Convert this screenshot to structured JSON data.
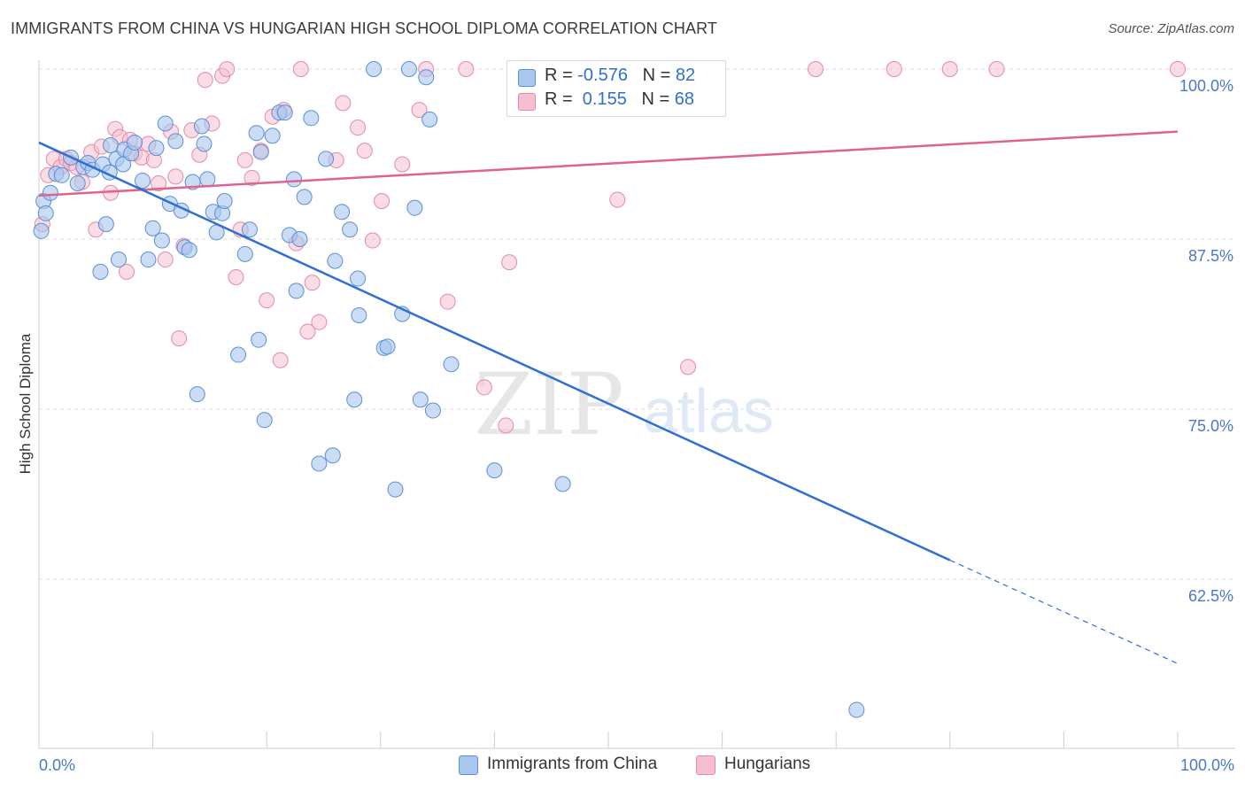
{
  "header": {
    "title": "IMMIGRANTS FROM CHINA VS HUNGARIAN HIGH SCHOOL DIPLOMA CORRELATION CHART",
    "source": "Source: ZipAtlas.com"
  },
  "legend_top": {
    "rows": [
      {
        "r_label": "R = ",
        "r_value": "-0.576",
        "n_label": "N = ",
        "n_value": "82"
      },
      {
        "r_label": "R = ",
        "r_value": " 0.155",
        "n_label": "N = ",
        "n_value": "68"
      }
    ]
  },
  "legend_bottom": {
    "china_label": "Immigrants from China",
    "hungarian_label": "Hungarians"
  },
  "watermark": {
    "zip": "ZIP",
    "atlas": "atlas"
  },
  "colors": {
    "china_fill": "#a9c6ef",
    "china_stroke": "#5b8fd6",
    "china_line": "#2f6fd3",
    "hungarian_fill": "#f6bfd0",
    "hungarian_stroke": "#e48aa8",
    "hungarian_line": "#e0638f",
    "grid": "#dddddd",
    "tick_label": "#4a78c8"
  },
  "chart_data": {
    "type": "scatter",
    "title": "IMMIGRANTS FROM CHINA VS HUNGARIAN HIGH SCHOOL DIPLOMA CORRELATION CHART",
    "xlabel": "",
    "ylabel": "High School Diploma",
    "xlim": [
      0,
      100
    ],
    "ylim": [
      52.0,
      101.2
    ],
    "x_tick_labels": [
      "0.0%",
      "100.0%"
    ],
    "y_ticks": [
      62.5,
      75.0,
      87.5,
      100.0
    ],
    "y_tick_labels": [
      "62.5%",
      "75.0%",
      "87.5%",
      "100.0%"
    ],
    "grid": true,
    "legend_position": "top-center",
    "series": [
      {
        "name": "Immigrants from China",
        "r": -0.576,
        "n": 82,
        "trend": {
          "x0": 0,
          "y0": 94.6,
          "x1": 80,
          "y1": 63.9,
          "dash_x1": 100,
          "dash_y1": 56.3
        },
        "points": [
          [
            0.2,
            88.1
          ],
          [
            0.4,
            90.3
          ],
          [
            0.6,
            89.4
          ],
          [
            1.0,
            90.9
          ],
          [
            1.5,
            92.3
          ],
          [
            2.0,
            92.2
          ],
          [
            2.8,
            93.5
          ],
          [
            3.4,
            91.6
          ],
          [
            3.9,
            92.8
          ],
          [
            4.3,
            93.1
          ],
          [
            4.7,
            92.6
          ],
          [
            5.4,
            85.1
          ],
          [
            5.6,
            93.0
          ],
          [
            5.9,
            88.6
          ],
          [
            6.2,
            92.4
          ],
          [
            6.3,
            94.4
          ],
          [
            6.8,
            93.4
          ],
          [
            7.0,
            86.0
          ],
          [
            7.4,
            93.0
          ],
          [
            7.5,
            94.1
          ],
          [
            8.1,
            93.8
          ],
          [
            8.4,
            94.6
          ],
          [
            9.1,
            91.8
          ],
          [
            9.6,
            86.0
          ],
          [
            10.0,
            88.3
          ],
          [
            10.3,
            94.2
          ],
          [
            10.8,
            87.4
          ],
          [
            11.1,
            96.0
          ],
          [
            11.5,
            90.1
          ],
          [
            12.0,
            94.7
          ],
          [
            12.5,
            89.6
          ],
          [
            12.8,
            86.9
          ],
          [
            13.2,
            86.7
          ],
          [
            13.5,
            91.7
          ],
          [
            13.9,
            76.1
          ],
          [
            14.3,
            95.8
          ],
          [
            14.5,
            94.5
          ],
          [
            14.8,
            91.9
          ],
          [
            15.3,
            89.5
          ],
          [
            15.6,
            88.0
          ],
          [
            16.1,
            89.4
          ],
          [
            16.3,
            90.3
          ],
          [
            17.5,
            79.0
          ],
          [
            18.1,
            86.4
          ],
          [
            18.5,
            88.2
          ],
          [
            19.1,
            95.3
          ],
          [
            19.3,
            80.1
          ],
          [
            19.5,
            93.9
          ],
          [
            19.8,
            74.2
          ],
          [
            20.5,
            95.1
          ],
          [
            21.1,
            96.8
          ],
          [
            21.6,
            96.8
          ],
          [
            22.0,
            87.8
          ],
          [
            22.4,
            91.9
          ],
          [
            22.6,
            83.7
          ],
          [
            22.9,
            87.5
          ],
          [
            23.3,
            90.6
          ],
          [
            23.9,
            96.4
          ],
          [
            24.6,
            71.0
          ],
          [
            25.2,
            93.4
          ],
          [
            25.8,
            71.6
          ],
          [
            26.0,
            85.9
          ],
          [
            26.6,
            89.5
          ],
          [
            27.3,
            88.2
          ],
          [
            27.7,
            75.7
          ],
          [
            28.0,
            84.6
          ],
          [
            28.1,
            81.9
          ],
          [
            29.4,
            100.0
          ],
          [
            30.3,
            79.5
          ],
          [
            30.6,
            79.6
          ],
          [
            31.3,
            69.1
          ],
          [
            31.9,
            82.0
          ],
          [
            32.5,
            100.0
          ],
          [
            33.0,
            89.8
          ],
          [
            33.5,
            75.7
          ],
          [
            34.0,
            99.4
          ],
          [
            34.3,
            96.3
          ],
          [
            34.6,
            74.9
          ],
          [
            36.2,
            78.3
          ],
          [
            40.0,
            70.5
          ],
          [
            46.0,
            69.5
          ],
          [
            71.8,
            52.9
          ]
        ]
      },
      {
        "name": "Hungarians",
        "r": 0.155,
        "n": 68,
        "trend": {
          "x0": 0,
          "y0": 90.7,
          "x1": 100,
          "y1": 95.4
        },
        "points": [
          [
            0.3,
            88.6
          ],
          [
            0.8,
            92.2
          ],
          [
            1.3,
            93.4
          ],
          [
            1.9,
            92.8
          ],
          [
            2.4,
            93.4
          ],
          [
            2.8,
            93.1
          ],
          [
            3.3,
            92.8
          ],
          [
            3.8,
            91.7
          ],
          [
            4.6,
            93.9
          ],
          [
            5.0,
            88.2
          ],
          [
            5.5,
            94.3
          ],
          [
            6.3,
            90.9
          ],
          [
            6.7,
            95.6
          ],
          [
            7.1,
            95.0
          ],
          [
            7.7,
            85.1
          ],
          [
            8.0,
            94.8
          ],
          [
            8.4,
            93.8
          ],
          [
            9.0,
            93.5
          ],
          [
            9.6,
            94.5
          ],
          [
            10.1,
            93.3
          ],
          [
            10.5,
            91.6
          ],
          [
            11.1,
            86.0
          ],
          [
            11.6,
            95.4
          ],
          [
            12.0,
            92.1
          ],
          [
            12.3,
            80.2
          ],
          [
            12.7,
            87.0
          ],
          [
            13.4,
            95.5
          ],
          [
            14.1,
            93.7
          ],
          [
            14.6,
            99.2
          ],
          [
            15.2,
            96.0
          ],
          [
            16.1,
            99.5
          ],
          [
            16.5,
            100.0
          ],
          [
            17.3,
            84.7
          ],
          [
            17.7,
            88.2
          ],
          [
            18.1,
            93.3
          ],
          [
            18.7,
            92.0
          ],
          [
            19.5,
            94.0
          ],
          [
            20.0,
            83.0
          ],
          [
            20.5,
            96.5
          ],
          [
            21.2,
            78.6
          ],
          [
            21.5,
            97.0
          ],
          [
            22.6,
            87.2
          ],
          [
            23.0,
            100.0
          ],
          [
            23.6,
            80.7
          ],
          [
            24.0,
            84.3
          ],
          [
            24.6,
            81.4
          ],
          [
            26.1,
            93.3
          ],
          [
            26.7,
            97.5
          ],
          [
            28.0,
            95.7
          ],
          [
            28.6,
            94.0
          ],
          [
            29.3,
            87.4
          ],
          [
            30.1,
            90.3
          ],
          [
            31.9,
            93.0
          ],
          [
            33.4,
            97.0
          ],
          [
            34.0,
            100.0
          ],
          [
            35.9,
            82.9
          ],
          [
            37.5,
            100.0
          ],
          [
            39.1,
            76.6
          ],
          [
            41.0,
            73.8
          ],
          [
            41.3,
            85.8
          ],
          [
            50.8,
            90.4
          ],
          [
            56.1,
            100.0
          ],
          [
            57.0,
            78.1
          ],
          [
            68.2,
            100.0
          ],
          [
            75.1,
            100.0
          ],
          [
            80.0,
            100.0
          ],
          [
            84.1,
            100.0
          ],
          [
            100.0,
            100.0
          ]
        ]
      }
    ]
  }
}
